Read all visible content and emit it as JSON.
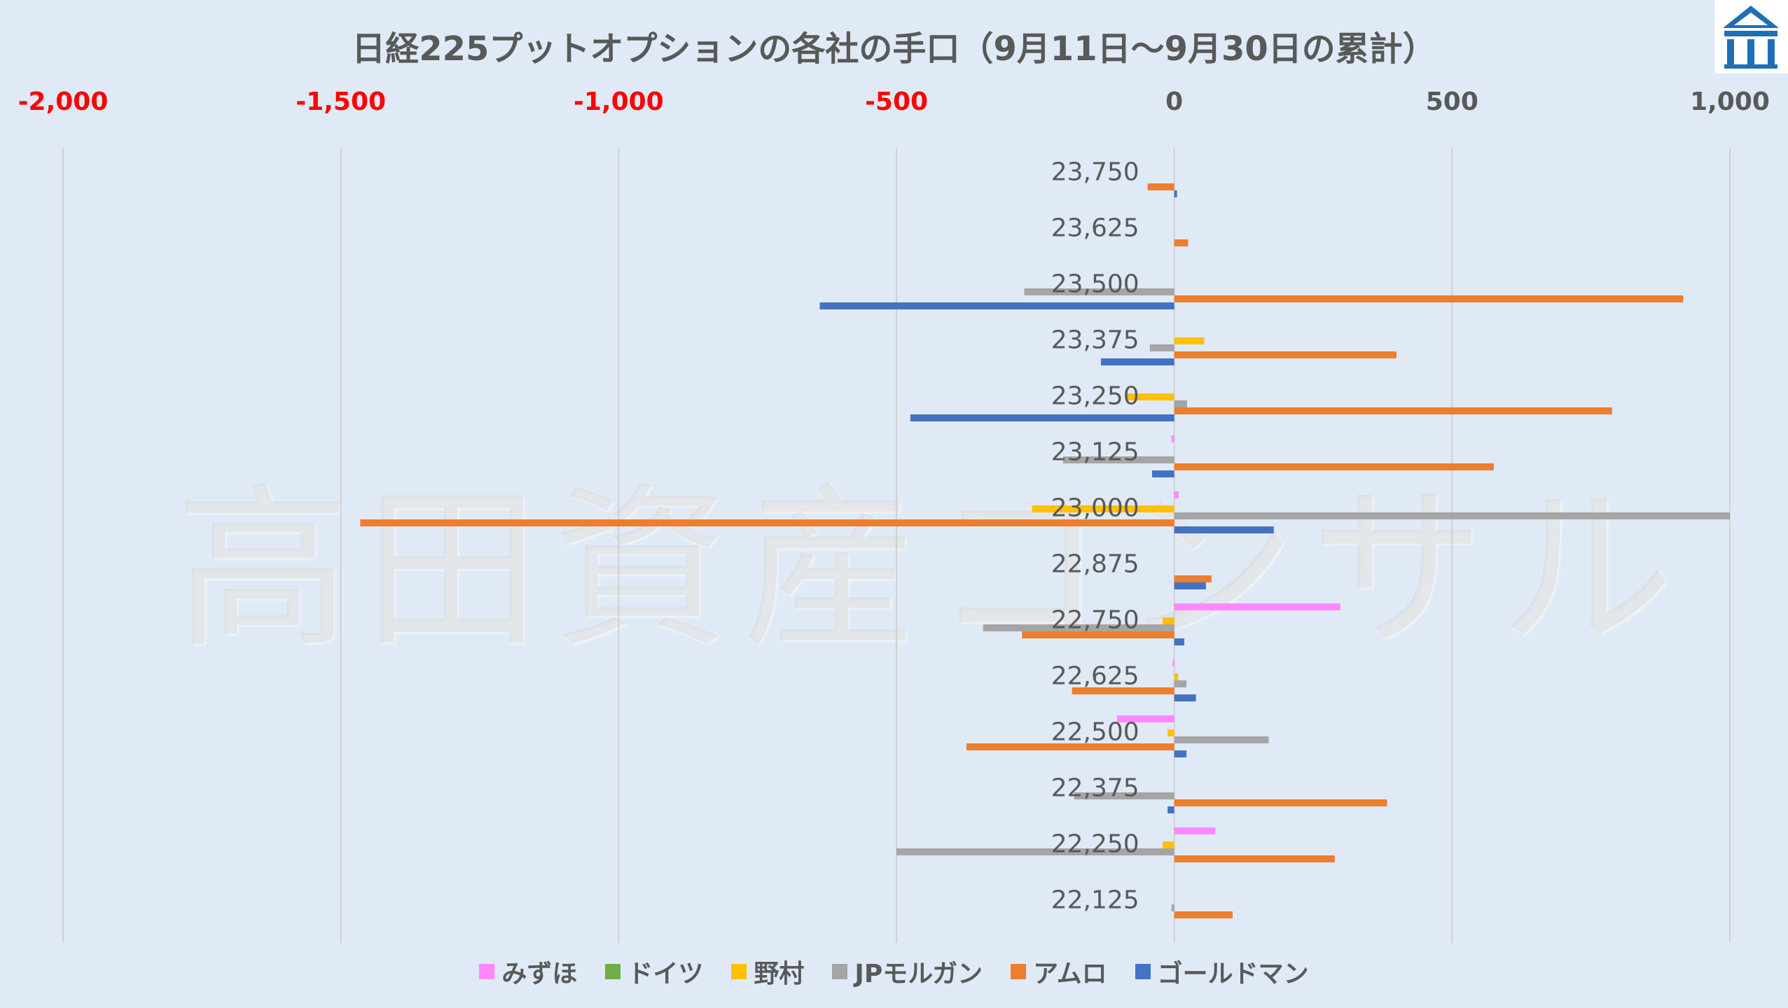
{
  "chart_data": {
    "type": "bar",
    "orientation": "horizontal",
    "title": "日経225プットオプションの各社の手口（9月11日～9月30日の累計）",
    "categories": [
      "23,750",
      "23,625",
      "23,500",
      "23,375",
      "23,250",
      "23,125",
      "23,000",
      "22,875",
      "22,750",
      "22,625",
      "22,500",
      "22,375",
      "22,250",
      "22,125"
    ],
    "xlim": [
      -2000,
      1000
    ],
    "xticks": [
      "-2,000",
      "-1,500",
      "-1,000",
      "-500",
      "0",
      "500",
      "1,000"
    ],
    "xtick_values": [
      -2000,
      -1500,
      -1000,
      -500,
      0,
      500,
      1000
    ],
    "negative_tick_color": "#ff0000",
    "positive_tick_color": "#595959",
    "grid": true,
    "legend_position": "bottom",
    "series": [
      {
        "name": "みずほ",
        "color": "#ff88ff",
        "values": [
          0,
          0,
          0,
          0,
          0,
          -5,
          8,
          0,
          299,
          -3,
          -103,
          0,
          74,
          0
        ]
      },
      {
        "name": "ドイツ",
        "color": "#70ad47",
        "values": [
          0,
          0,
          0,
          0,
          0,
          0,
          0,
          0,
          0,
          0,
          0,
          0,
          0,
          0
        ]
      },
      {
        "name": "野村",
        "color": "#ffc000",
        "values": [
          0,
          0,
          0,
          54,
          -85,
          0,
          -256,
          0,
          -21,
          7,
          -12,
          0,
          -21,
          0
        ]
      },
      {
        "name": "JPモルガン",
        "color": "#a5a5a5",
        "values": [
          0,
          0,
          -270,
          -44,
          23,
          -200,
          1000,
          0,
          -344,
          22,
          170,
          -180,
          -500,
          -5
        ]
      },
      {
        "name": "アムロ",
        "color": "#ed7d31",
        "values": [
          -48,
          25,
          916,
          400,
          788,
          575,
          -1465,
          67,
          -274,
          -184,
          -374,
          383,
          289,
          105
        ]
      },
      {
        "name": "ゴールドマン",
        "color": "#4472c4",
        "values": [
          5,
          0,
          -638,
          -132,
          -475,
          -40,
          179,
          57,
          18,
          39,
          22,
          -12,
          0,
          0
        ]
      }
    ]
  },
  "watermark": "高田資産コンサル"
}
